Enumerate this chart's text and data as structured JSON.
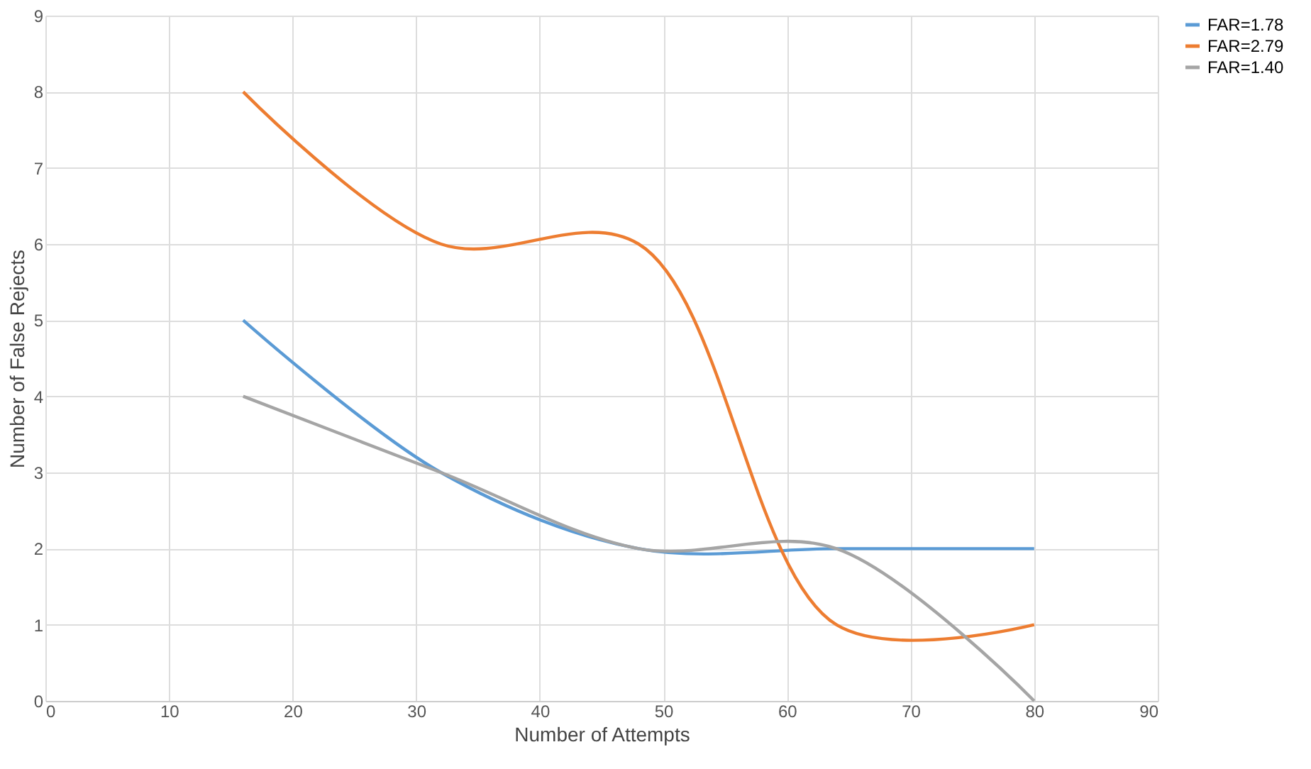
{
  "chart_data": {
    "type": "line",
    "xlabel": "Number  of Attempts",
    "ylabel": "Number  of False Rejects",
    "x": [
      16,
      32,
      48,
      64,
      80
    ],
    "series": [
      {
        "name": "FAR=1.78",
        "color": "#5b9bd5",
        "values": [
          5,
          3,
          2,
          2,
          2
        ]
      },
      {
        "name": "FAR=2.79",
        "color": "#ed7d31",
        "values": [
          8,
          6,
          6,
          1,
          1
        ]
      },
      {
        "name": "FAR=1.40",
        "color": "#a5a5a5",
        "values": [
          4,
          3,
          2,
          2,
          0
        ]
      }
    ],
    "xlim": [
      0,
      90
    ],
    "xticks": [
      0,
      10,
      20,
      30,
      40,
      50,
      60,
      70,
      80,
      90
    ],
    "ylim": [
      0,
      9
    ],
    "yticks": [
      0,
      1,
      2,
      3,
      4,
      5,
      6,
      7,
      8,
      9
    ],
    "grid": true,
    "legend": "right",
    "marker": "none",
    "line_style": "solid"
  }
}
